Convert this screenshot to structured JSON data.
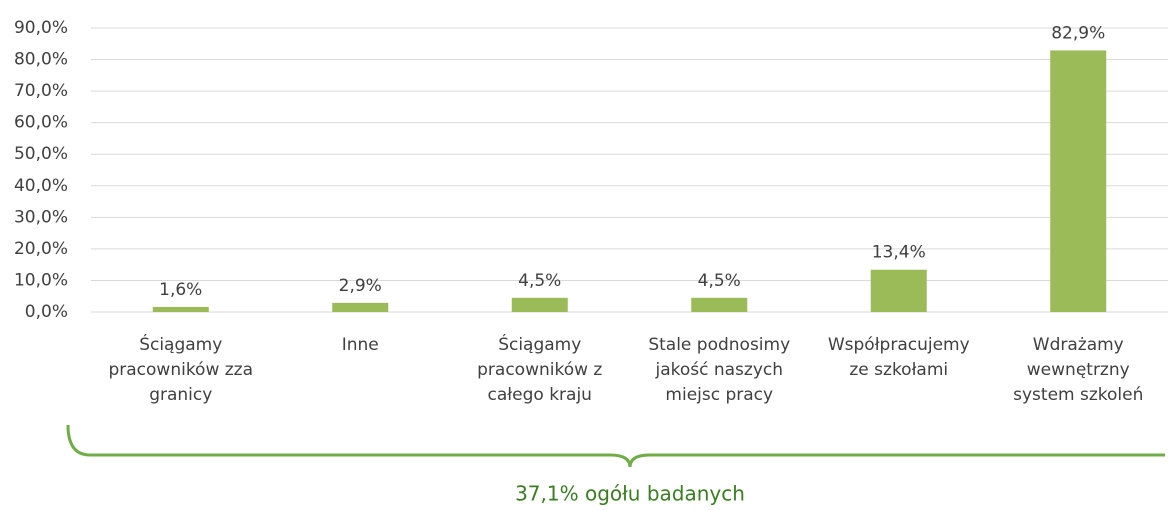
{
  "chart_data": {
    "type": "bar",
    "categories": [
      "Ściągamy\npracowników zza\ngranicy",
      "Inne",
      "Ściągamy\npracowników z\ncałego kraju",
      "Stale podnosimy\njakość naszych\nmiejsc pracy",
      "Współpracujemy\nze szkołami",
      "Wdrażamy\nwewnętrzny\nsystem szkoleń"
    ],
    "values": [
      1.6,
      2.9,
      4.5,
      4.5,
      13.4,
      82.9
    ],
    "value_labels": [
      "1,6%",
      "2,9%",
      "4,5%",
      "4,5%",
      "13,4%",
      "82,9%"
    ],
    "color": "#9bbb59",
    "ylim": [
      0,
      90
    ],
    "yticks": [
      {
        "value": 0,
        "label": "0,0%"
      },
      {
        "value": 10,
        "label": "10,0%"
      },
      {
        "value": 20,
        "label": "20,0%"
      },
      {
        "value": 30,
        "label": "30,0%"
      },
      {
        "value": 40,
        "label": "40,0%"
      },
      {
        "value": 50,
        "label": "50,0%"
      },
      {
        "value": 60,
        "label": "60,0%"
      },
      {
        "value": 70,
        "label": "70,0%"
      },
      {
        "value": 80,
        "label": "80,0%"
      },
      {
        "value": 90,
        "label": "90,0%"
      }
    ],
    "grid": true,
    "annotation": "37,1% ogółu badanych"
  }
}
